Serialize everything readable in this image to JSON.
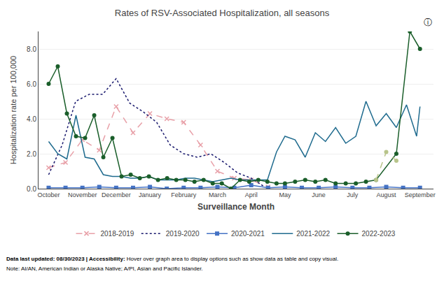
{
  "chart_data": {
    "type": "line",
    "title": "Rates of RSV-Associated Hospitalization, all seasons",
    "ylabel": "Hospitalization rate per 100,000",
    "xlabel": "Surveillance Month",
    "annotations": [
      "ⓘ",
      "Data last updated: 08/30/2023 | Accessibility:",
      " Hover over graph area to display options such as show data as table and copy visual.",
      "Note: AI/AN, American Indian or Alaska Native; A/PI, Asian and Pacific Islander."
    ],
    "xlim": [
      -0.3,
      11.4
    ],
    "xticks": [
      {
        "value": 0,
        "label": "October"
      },
      {
        "value": 1,
        "label": "November"
      },
      {
        "value": 2,
        "label": "December"
      },
      {
        "value": 3,
        "label": "January"
      },
      {
        "value": 4,
        "label": "February"
      },
      {
        "value": 5,
        "label": "March"
      },
      {
        "value": 6,
        "label": "April"
      },
      {
        "value": 7,
        "label": "May"
      },
      {
        "value": 8,
        "label": "June"
      },
      {
        "value": 9,
        "label": "July"
      },
      {
        "value": 10,
        "label": "August"
      },
      {
        "value": 11,
        "label": "September"
      }
    ],
    "ylim": [
      0,
      9.0
    ],
    "yticks": [
      {
        "value": 0.0,
        "label": "0.0"
      },
      {
        "value": 2.0,
        "label": "2.0"
      },
      {
        "value": 4.0,
        "label": "4.0"
      },
      {
        "value": 6.0,
        "label": "6.0"
      },
      {
        "value": 8.0,
        "label": "8.0"
      }
    ],
    "grid": true,
    "legend": "bottom",
    "series": [
      {
        "name": "2018-2019",
        "color": "#e8a0a8",
        "line_style": "dash",
        "marker": "x",
        "x": [
          0.0,
          0.5,
          1.0,
          1.5,
          2.0,
          2.5,
          3.0,
          3.5,
          4.0,
          4.5,
          5.0,
          5.5,
          6.0,
          6.5
        ],
        "values": [
          1.2,
          1.5,
          2.8,
          2.2,
          4.7,
          3.2,
          4.3,
          4.0,
          3.8,
          2.5,
          1.0,
          0.6,
          0.5,
          0.1
        ]
      },
      {
        "name": "2019-2020",
        "color": "#1a1a6e",
        "line_style": "dot",
        "x": [
          0.0,
          0.4,
          0.8,
          1.2,
          1.6,
          2.0,
          2.4,
          2.8,
          3.2,
          3.6,
          4.0,
          4.4,
          4.8,
          5.2,
          5.6,
          6.0,
          6.4
        ],
        "values": [
          0.8,
          2.5,
          5.0,
          5.4,
          5.4,
          6.3,
          4.9,
          4.4,
          3.8,
          2.5,
          2.0,
          1.8,
          2.0,
          1.5,
          0.9,
          0.6,
          0.1
        ]
      },
      {
        "name": "2020-2021",
        "color": "#4472c4",
        "line_style": "solid",
        "marker": "square",
        "x": [
          0.0,
          0.5,
          1.0,
          1.5,
          2.0,
          2.5,
          3.0,
          3.5,
          4.0,
          4.5,
          5.0,
          5.5,
          6.0,
          6.5,
          7.0,
          7.5,
          8.0,
          8.5,
          9.0,
          9.5,
          10.0,
          10.5,
          11.0
        ],
        "values": [
          0.05,
          0.05,
          0.05,
          0.1,
          0.05,
          0.05,
          0.1,
          0.0,
          0.05,
          0.05,
          0.1,
          0.05,
          0.2,
          0.05,
          0.1,
          0.05,
          0.05,
          0.1,
          0.05,
          0.05,
          0.1,
          0.05,
          0.05
        ]
      },
      {
        "name": "2021-2022",
        "color": "#1f6b8e",
        "line_style": "solid",
        "x": [
          0.0,
          0.27,
          0.54,
          0.81,
          1.08,
          1.35,
          1.62,
          1.89,
          2.16,
          2.43,
          2.7,
          2.97,
          3.24,
          3.51,
          3.78,
          4.05,
          4.32,
          4.59,
          4.86,
          5.13,
          5.4,
          5.67,
          5.94,
          6.21,
          6.48,
          6.75,
          7.0,
          7.3,
          7.6,
          7.9,
          8.2,
          8.5,
          8.8,
          9.1,
          9.4,
          9.7,
          10.0,
          10.3,
          10.6,
          10.9,
          11.0
        ],
        "values": [
          2.7,
          2.0,
          1.7,
          4.2,
          1.8,
          1.7,
          0.8,
          0.7,
          0.7,
          0.6,
          0.6,
          0.7,
          0.5,
          0.5,
          0.5,
          0.6,
          0.6,
          0.5,
          0.4,
          0.5,
          0.6,
          0.5,
          0.5,
          0.5,
          0.5,
          2.1,
          3.0,
          2.8,
          1.8,
          3.2,
          2.7,
          3.5,
          2.6,
          3.0,
          5.0,
          3.6,
          4.3,
          3.5,
          4.8,
          3.0,
          4.7
        ]
      },
      {
        "name": "2022-2023",
        "color": "#1a5e2a",
        "line_style": "solid",
        "marker": "circle",
        "x": [
          0.0,
          0.27,
          0.54,
          0.81,
          1.08,
          1.35,
          1.62,
          1.89,
          2.16,
          2.43,
          2.7,
          2.97,
          3.24,
          3.51,
          3.78,
          4.05,
          4.32,
          4.59,
          4.86,
          5.13,
          5.4,
          5.67,
          5.94,
          6.21,
          6.48,
          6.75,
          7.0,
          7.3,
          7.6,
          7.9,
          8.2,
          8.5,
          8.8,
          9.1,
          9.4,
          9.7,
          10.3,
          10.7,
          11.0
        ],
        "values": [
          6.0,
          7.0,
          4.3,
          3.0,
          2.9,
          4.2,
          1.8,
          2.9,
          0.7,
          0.8,
          0.6,
          0.7,
          0.5,
          0.6,
          0.5,
          0.5,
          0.4,
          0.5,
          0.3,
          0.3,
          0.0,
          0.5,
          0.4,
          0.5,
          0.4,
          0.3,
          0.3,
          0.4,
          0.5,
          0.4,
          0.5,
          0.3,
          0.3,
          0.3,
          0.4,
          0.5,
          2.0,
          9.0,
          8.0
        ]
      },
      {
        "color": "#b8c48a",
        "line_style": "dash",
        "marker": "circle",
        "x": [
          9.7,
          10.0,
          10.3
        ],
        "values": [
          0.5,
          2.1,
          1.6
        ]
      }
    ]
  }
}
